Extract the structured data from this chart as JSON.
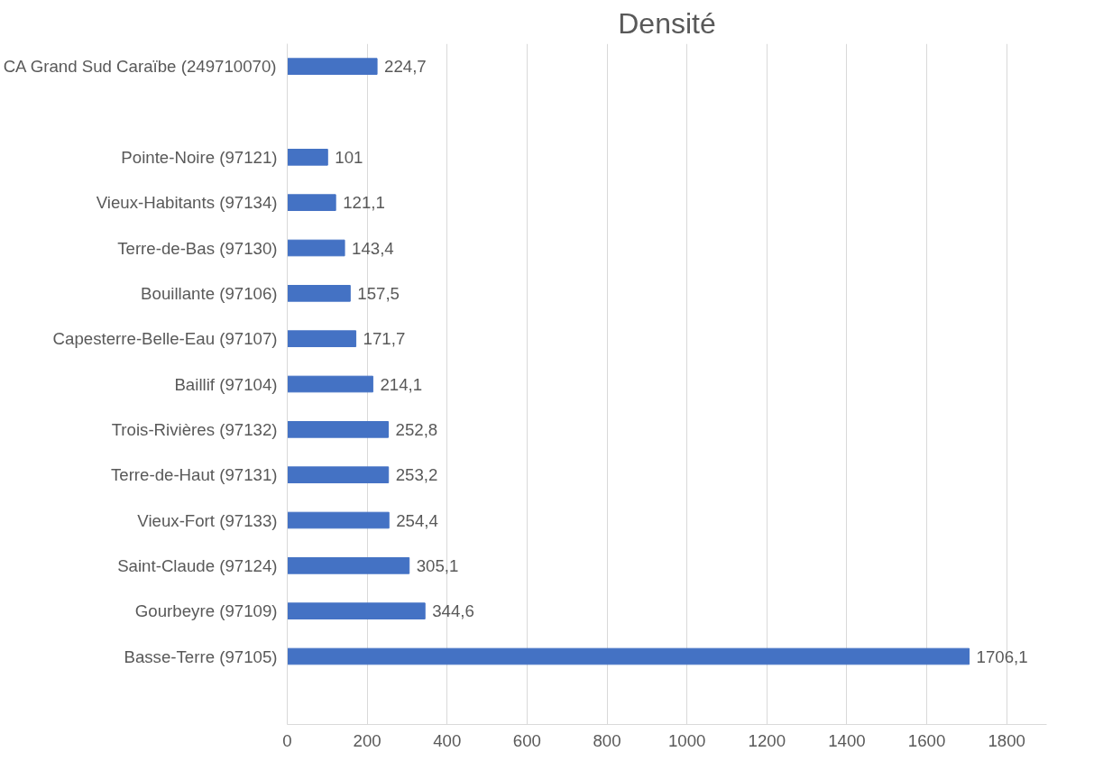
{
  "chart_data": {
    "type": "bar",
    "orientation": "horizontal",
    "title": "Densité",
    "categories": [
      "CA Grand Sud Caraïbe (249710070)",
      null,
      "Pointe-Noire (97121)",
      "Vieux-Habitants (97134)",
      "Terre-de-Bas (97130)",
      "Bouillante (97106)",
      "Capesterre-Belle-Eau (97107)",
      "Baillif (97104)",
      "Trois-Rivières (97132)",
      "Terre-de-Haut (97131)",
      "Vieux-Fort (97133)",
      "Saint-Claude (97124)",
      "Gourbeyre (97109)",
      "Basse-Terre (97105)",
      null
    ],
    "values": [
      224.7,
      null,
      101,
      121.1,
      143.4,
      157.5,
      171.7,
      214.1,
      252.8,
      253.2,
      254.4,
      305.1,
      344.6,
      1706.1,
      null
    ],
    "value_labels": [
      "224,7",
      null,
      "101",
      "121,1",
      "143,4",
      "157,5",
      "171,7",
      "214,1",
      "252,8",
      "253,2",
      "254,4",
      "305,1",
      "344,6",
      "1706,1",
      null
    ],
    "color": "#4472c4",
    "xlim": [
      0,
      1900
    ],
    "xticks": [
      0,
      200,
      400,
      600,
      800,
      1000,
      1200,
      1400,
      1600,
      1800
    ],
    "grid": "x"
  }
}
